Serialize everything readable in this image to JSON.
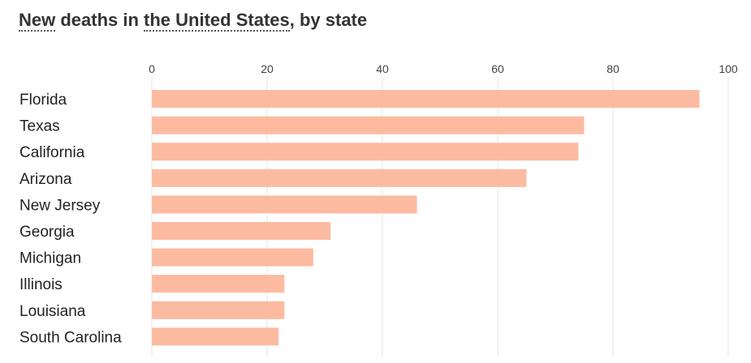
{
  "title": {
    "metric": "New",
    "middle": " deaths in ",
    "region": "the United States",
    "suffix": ", by state"
  },
  "colors": {
    "bar": "#fcbba1",
    "grid": "#e5e5e5"
  },
  "chart_data": {
    "type": "bar",
    "orientation": "horizontal",
    "title": "New deaths in the United States, by state",
    "categories": [
      "Florida",
      "Texas",
      "California",
      "Arizona",
      "New Jersey",
      "Georgia",
      "Michigan",
      "Illinois",
      "Louisiana",
      "South Carolina"
    ],
    "values": [
      95,
      75,
      74,
      65,
      46,
      31,
      28,
      23,
      23,
      22
    ],
    "xlim": [
      0,
      100
    ],
    "ticks": [
      "0",
      "20",
      "40",
      "60",
      "80",
      "100"
    ],
    "tick_values": [
      0,
      20,
      40,
      60,
      80,
      100
    ],
    "grid": true,
    "xlabel": "",
    "ylabel": ""
  }
}
